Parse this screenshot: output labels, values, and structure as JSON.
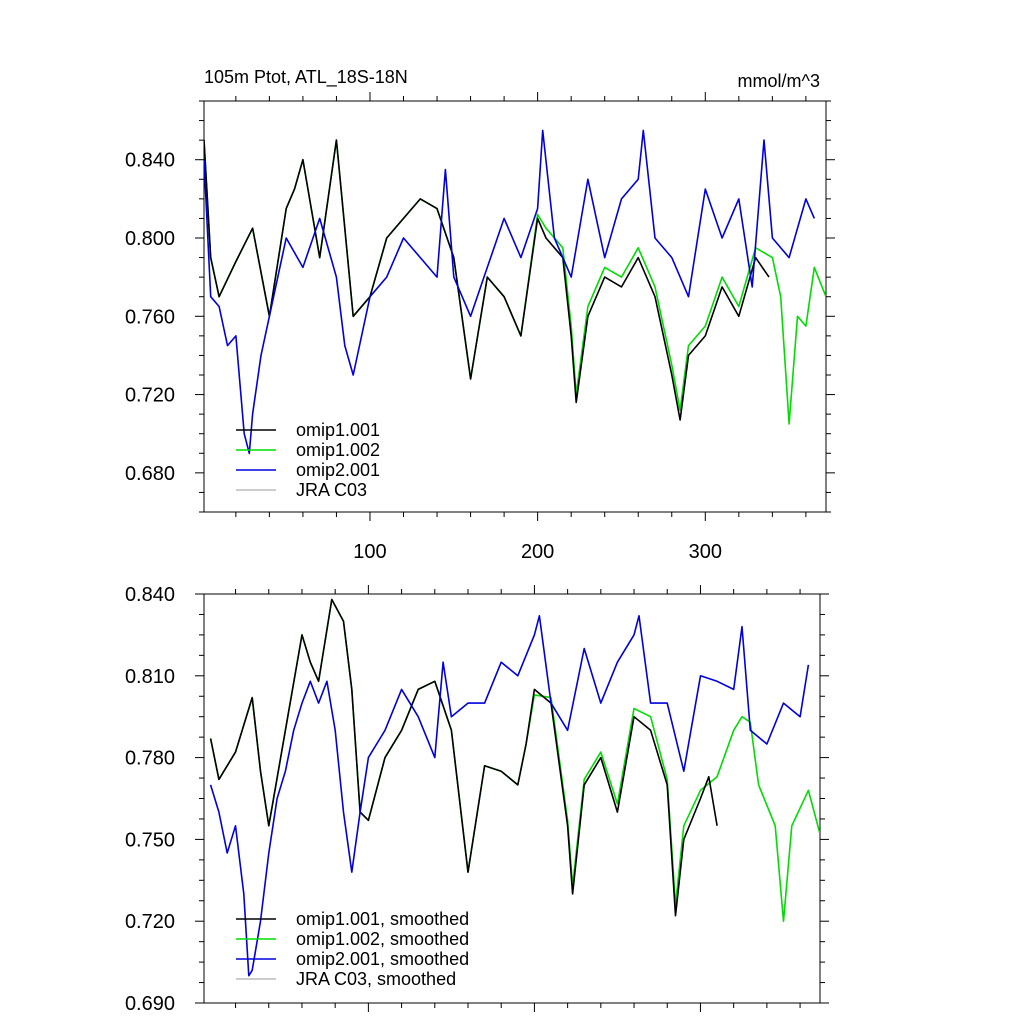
{
  "figure": {
    "title_left": "105m Ptot, ATL_18S-18N",
    "title_right": "mmol/m^3"
  },
  "chart_data": [
    {
      "type": "line",
      "title": "105m Ptot, ATL_18S-18N",
      "units": "mmol/m^3",
      "xlim": [
        1,
        372
      ],
      "ylim": [
        0.66,
        0.87
      ],
      "x_ticks": [
        100,
        200,
        300
      ],
      "y_ticks": [
        0.68,
        0.72,
        0.76,
        0.8,
        0.84
      ],
      "y_tick_labels": [
        "0.680",
        "0.720",
        "0.760",
        "0.800",
        "0.840"
      ],
      "legend_position": "bottom-left",
      "legend": [
        "omip1.001",
        "omip1.002",
        "omip2.001",
        "JRA C03"
      ],
      "series": [
        {
          "name": "omip1.001",
          "color": "#000000",
          "x": [
            1,
            5,
            10,
            20,
            30,
            40,
            50,
            55,
            60,
            70,
            80,
            90,
            100,
            110,
            120,
            130,
            140,
            150,
            160,
            170,
            180,
            190,
            200,
            205,
            210,
            215,
            220,
            223,
            230,
            240,
            250,
            260,
            270,
            280,
            285,
            290,
            300,
            310,
            320,
            330,
            338
          ],
          "y": [
            0.85,
            0.79,
            0.77,
            0.788,
            0.805,
            0.76,
            0.815,
            0.825,
            0.84,
            0.79,
            0.85,
            0.76,
            0.77,
            0.8,
            0.81,
            0.82,
            0.815,
            0.79,
            0.728,
            0.78,
            0.77,
            0.75,
            0.81,
            0.8,
            0.795,
            0.79,
            0.75,
            0.716,
            0.76,
            0.78,
            0.775,
            0.79,
            0.77,
            0.73,
            0.707,
            0.74,
            0.75,
            0.775,
            0.76,
            0.79,
            0.78
          ]
        },
        {
          "name": "omip1.002",
          "color": "#00dd00",
          "x": [
            1,
            5,
            10,
            20,
            30,
            40,
            50,
            55,
            60,
            70,
            80,
            90,
            100,
            110,
            120,
            130,
            140,
            150,
            160,
            170,
            180,
            190,
            200,
            205,
            210,
            215,
            220,
            223,
            230,
            240,
            250,
            260,
            270,
            280,
            285,
            290,
            300,
            310,
            320,
            330,
            340,
            345,
            350,
            355,
            360,
            365,
            372
          ],
          "y": [
            0.85,
            0.79,
            0.77,
            0.788,
            0.805,
            0.76,
            0.815,
            0.825,
            0.84,
            0.79,
            0.85,
            0.76,
            0.77,
            0.8,
            0.81,
            0.82,
            0.815,
            0.79,
            0.728,
            0.78,
            0.77,
            0.75,
            0.812,
            0.805,
            0.8,
            0.795,
            0.755,
            0.72,
            0.765,
            0.785,
            0.78,
            0.795,
            0.775,
            0.735,
            0.712,
            0.745,
            0.755,
            0.78,
            0.765,
            0.795,
            0.79,
            0.77,
            0.705,
            0.76,
            0.755,
            0.785,
            0.77
          ]
        },
        {
          "name": "omip2.001",
          "color": "#0000dd",
          "x": [
            1,
            5,
            10,
            15,
            20,
            25,
            28,
            30,
            35,
            40,
            45,
            50,
            60,
            70,
            80,
            85,
            90,
            100,
            110,
            120,
            130,
            140,
            145,
            150,
            160,
            170,
            180,
            190,
            200,
            203,
            210,
            220,
            230,
            240,
            250,
            260,
            263,
            270,
            280,
            290,
            300,
            310,
            320,
            328,
            335,
            340,
            350,
            360,
            365
          ],
          "y": [
            0.84,
            0.77,
            0.765,
            0.745,
            0.75,
            0.7,
            0.69,
            0.71,
            0.74,
            0.76,
            0.78,
            0.8,
            0.785,
            0.81,
            0.78,
            0.745,
            0.73,
            0.77,
            0.78,
            0.8,
            0.79,
            0.78,
            0.835,
            0.78,
            0.76,
            0.785,
            0.81,
            0.79,
            0.815,
            0.855,
            0.8,
            0.78,
            0.83,
            0.79,
            0.82,
            0.83,
            0.855,
            0.8,
            0.79,
            0.77,
            0.825,
            0.8,
            0.82,
            0.775,
            0.85,
            0.8,
            0.79,
            0.82,
            0.81
          ]
        },
        {
          "name": "JRA C03",
          "color": "#bbbbbb",
          "x": [],
          "y": []
        }
      ]
    },
    {
      "type": "line",
      "xlim": [
        1,
        372
      ],
      "ylim": [
        0.69,
        0.84
      ],
      "x_ticks": [
        100,
        200,
        300
      ],
      "y_ticks": [
        0.69,
        0.72,
        0.75,
        0.78,
        0.81,
        0.84
      ],
      "y_tick_labels": [
        "0.690",
        "0.720",
        "0.750",
        "0.780",
        "0.810",
        "0.840"
      ],
      "legend_position": "bottom-left",
      "legend": [
        "omip1.001, smoothed",
        "omip1.002, smoothed",
        "omip2.001, smoothed",
        "JRA C03, smoothed"
      ],
      "series": [
        {
          "name": "omip1.001, smoothed",
          "color": "#000000",
          "x": [
            5,
            10,
            20,
            30,
            35,
            40,
            50,
            60,
            65,
            70,
            78,
            85,
            90,
            95,
            100,
            110,
            120,
            130,
            140,
            150,
            160,
            170,
            180,
            190,
            195,
            200,
            210,
            220,
            223,
            230,
            240,
            250,
            260,
            270,
            280,
            285,
            290,
            300,
            305,
            310
          ],
          "y": [
            0.787,
            0.772,
            0.782,
            0.802,
            0.775,
            0.755,
            0.79,
            0.825,
            0.815,
            0.808,
            0.838,
            0.83,
            0.805,
            0.76,
            0.757,
            0.78,
            0.79,
            0.805,
            0.808,
            0.79,
            0.738,
            0.777,
            0.775,
            0.77,
            0.785,
            0.805,
            0.8,
            0.755,
            0.73,
            0.77,
            0.78,
            0.76,
            0.795,
            0.79,
            0.77,
            0.722,
            0.75,
            0.765,
            0.773,
            0.755
          ]
        },
        {
          "name": "omip1.002, smoothed",
          "color": "#00dd00",
          "x": [
            5,
            10,
            20,
            30,
            35,
            40,
            50,
            60,
            65,
            70,
            78,
            85,
            90,
            95,
            100,
            110,
            120,
            130,
            140,
            150,
            160,
            170,
            180,
            190,
            195,
            200,
            210,
            220,
            223,
            230,
            240,
            250,
            260,
            270,
            280,
            285,
            290,
            300,
            310,
            320,
            325,
            330,
            335,
            345,
            350,
            355,
            365,
            372
          ],
          "y": [
            0.787,
            0.772,
            0.782,
            0.802,
            0.775,
            0.755,
            0.79,
            0.825,
            0.815,
            0.808,
            0.838,
            0.83,
            0.805,
            0.76,
            0.757,
            0.78,
            0.79,
            0.805,
            0.808,
            0.79,
            0.738,
            0.777,
            0.775,
            0.77,
            0.785,
            0.803,
            0.802,
            0.757,
            0.733,
            0.772,
            0.782,
            0.763,
            0.798,
            0.795,
            0.772,
            0.726,
            0.755,
            0.768,
            0.773,
            0.79,
            0.795,
            0.793,
            0.77,
            0.755,
            0.72,
            0.755,
            0.768,
            0.752
          ]
        },
        {
          "name": "omip2.001, smoothed",
          "color": "#0000dd",
          "x": [
            5,
            10,
            15,
            20,
            25,
            28,
            30,
            35,
            40,
            45,
            50,
            55,
            60,
            65,
            70,
            75,
            80,
            85,
            90,
            95,
            100,
            110,
            120,
            130,
            140,
            145,
            150,
            160,
            170,
            180,
            190,
            200,
            203,
            210,
            220,
            230,
            240,
            250,
            260,
            263,
            270,
            280,
            290,
            300,
            310,
            320,
            325,
            330,
            340,
            350,
            360,
            365
          ],
          "y": [
            0.77,
            0.76,
            0.745,
            0.755,
            0.73,
            0.7,
            0.702,
            0.72,
            0.745,
            0.765,
            0.775,
            0.79,
            0.8,
            0.808,
            0.8,
            0.808,
            0.79,
            0.76,
            0.738,
            0.76,
            0.78,
            0.79,
            0.805,
            0.795,
            0.78,
            0.815,
            0.795,
            0.8,
            0.8,
            0.815,
            0.81,
            0.825,
            0.832,
            0.8,
            0.79,
            0.82,
            0.8,
            0.815,
            0.825,
            0.832,
            0.8,
            0.8,
            0.775,
            0.81,
            0.808,
            0.805,
            0.828,
            0.79,
            0.785,
            0.8,
            0.795,
            0.814
          ]
        },
        {
          "name": "JRA C03, smoothed",
          "color": "#bbbbbb",
          "x": [],
          "y": []
        }
      ]
    }
  ]
}
